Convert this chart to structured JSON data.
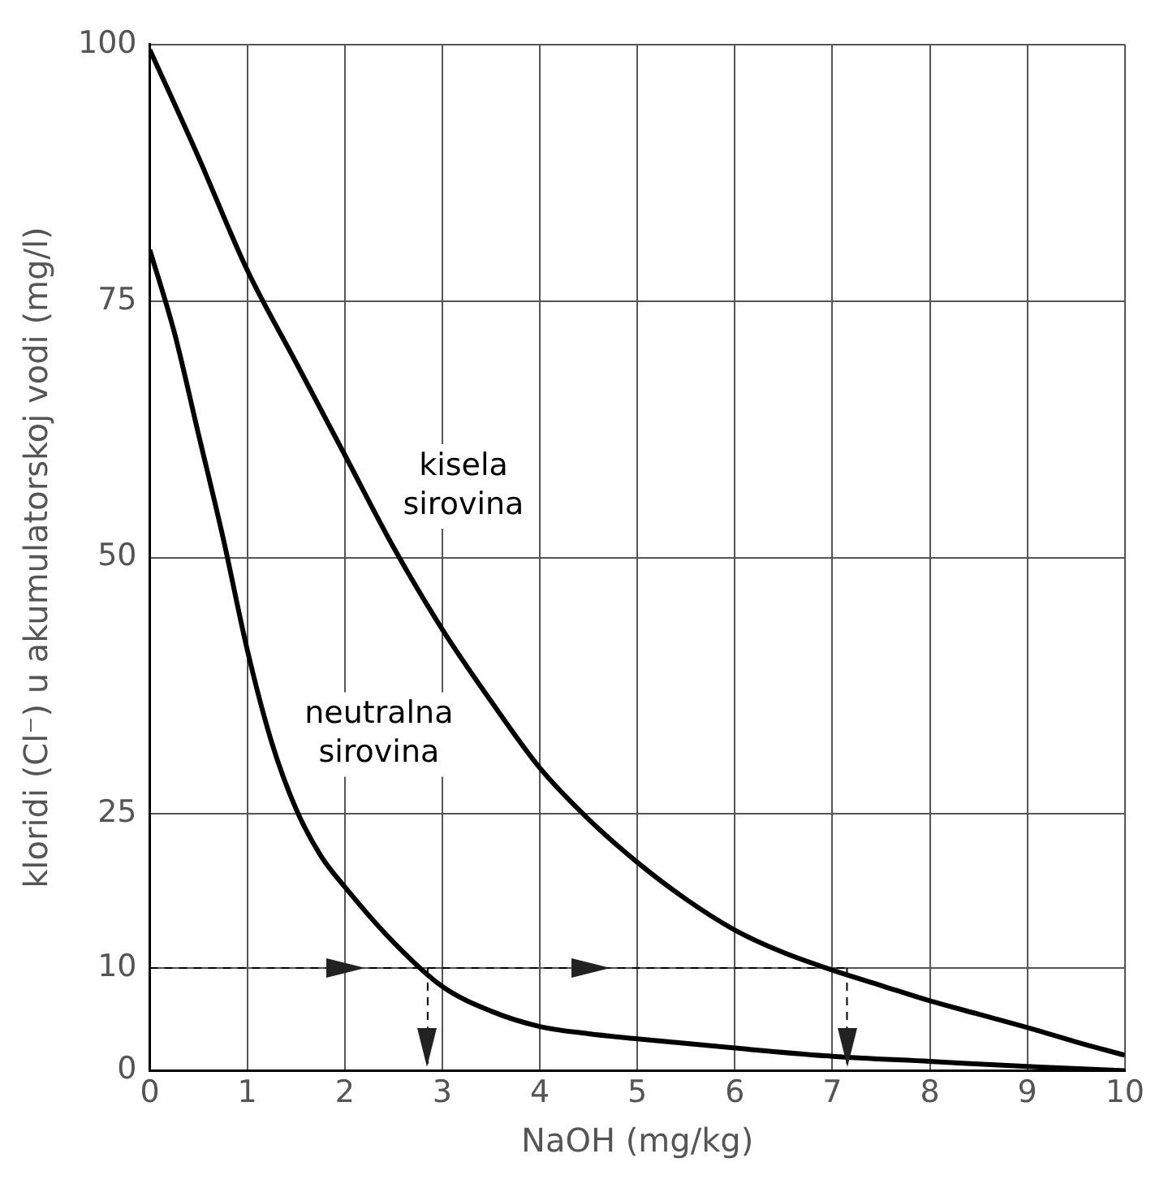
{
  "chart_data": {
    "type": "line",
    "xlabel": "NaOH (mg/kg)",
    "ylabel": "kloridi (Cl⁻) u akumulatorskoj vodi (mg/l)",
    "xlim": [
      0,
      10
    ],
    "xticks": [
      0,
      1,
      2,
      3,
      4,
      5,
      6,
      7,
      8,
      9,
      10
    ],
    "ylim": [
      0,
      100
    ],
    "yticks": [
      0,
      10,
      25,
      50,
      75,
      100
    ],
    "grid": true,
    "legend": false,
    "marker": "none",
    "series": [
      {
        "name": "kisela sirovina",
        "color": "#000000",
        "x": [
          0,
          0.5,
          1,
          1.5,
          2,
          2.5,
          3,
          3.5,
          4,
          4.5,
          5,
          5.5,
          6,
          6.5,
          7,
          7.5,
          8,
          8.5,
          9,
          9.5,
          10
        ],
        "values": [
          99.5,
          89,
          78,
          69,
          60,
          51,
          43,
          36,
          29.5,
          24.5,
          20.3,
          16.7,
          13.7,
          11.5,
          9.8,
          8.3,
          6.8,
          5.5,
          4.2,
          2.8,
          1.5
        ]
      },
      {
        "name": "neutralna sirovina",
        "color": "#000000",
        "x": [
          0,
          0.25,
          0.5,
          0.75,
          1,
          1.25,
          1.5,
          1.75,
          2,
          2.5,
          3,
          3.5,
          4,
          4.5,
          5,
          6,
          7,
          8,
          9,
          10
        ],
        "values": [
          80,
          72,
          62,
          52,
          41,
          32,
          25.5,
          21,
          17.9,
          12.5,
          8.2,
          5.8,
          4.3,
          3.6,
          3.1,
          2.2,
          1.4,
          0.9,
          0.4,
          0
        ]
      },
      {
        "type": "line",
        "line_style": "dashed",
        "color": "#000000",
        "x": [
          0,
          7.15
        ],
        "values": [
          10,
          10
        ]
      },
      {
        "type": "line",
        "line_style": "dashed",
        "color": "#000000",
        "x": [
          2.85,
          2.85
        ],
        "values": [
          10,
          0
        ]
      },
      {
        "type": "line",
        "line_style": "dashed",
        "color": "#000000",
        "x": [
          7.15,
          7.15
        ],
        "values": [
          10,
          0
        ]
      }
    ]
  }
}
